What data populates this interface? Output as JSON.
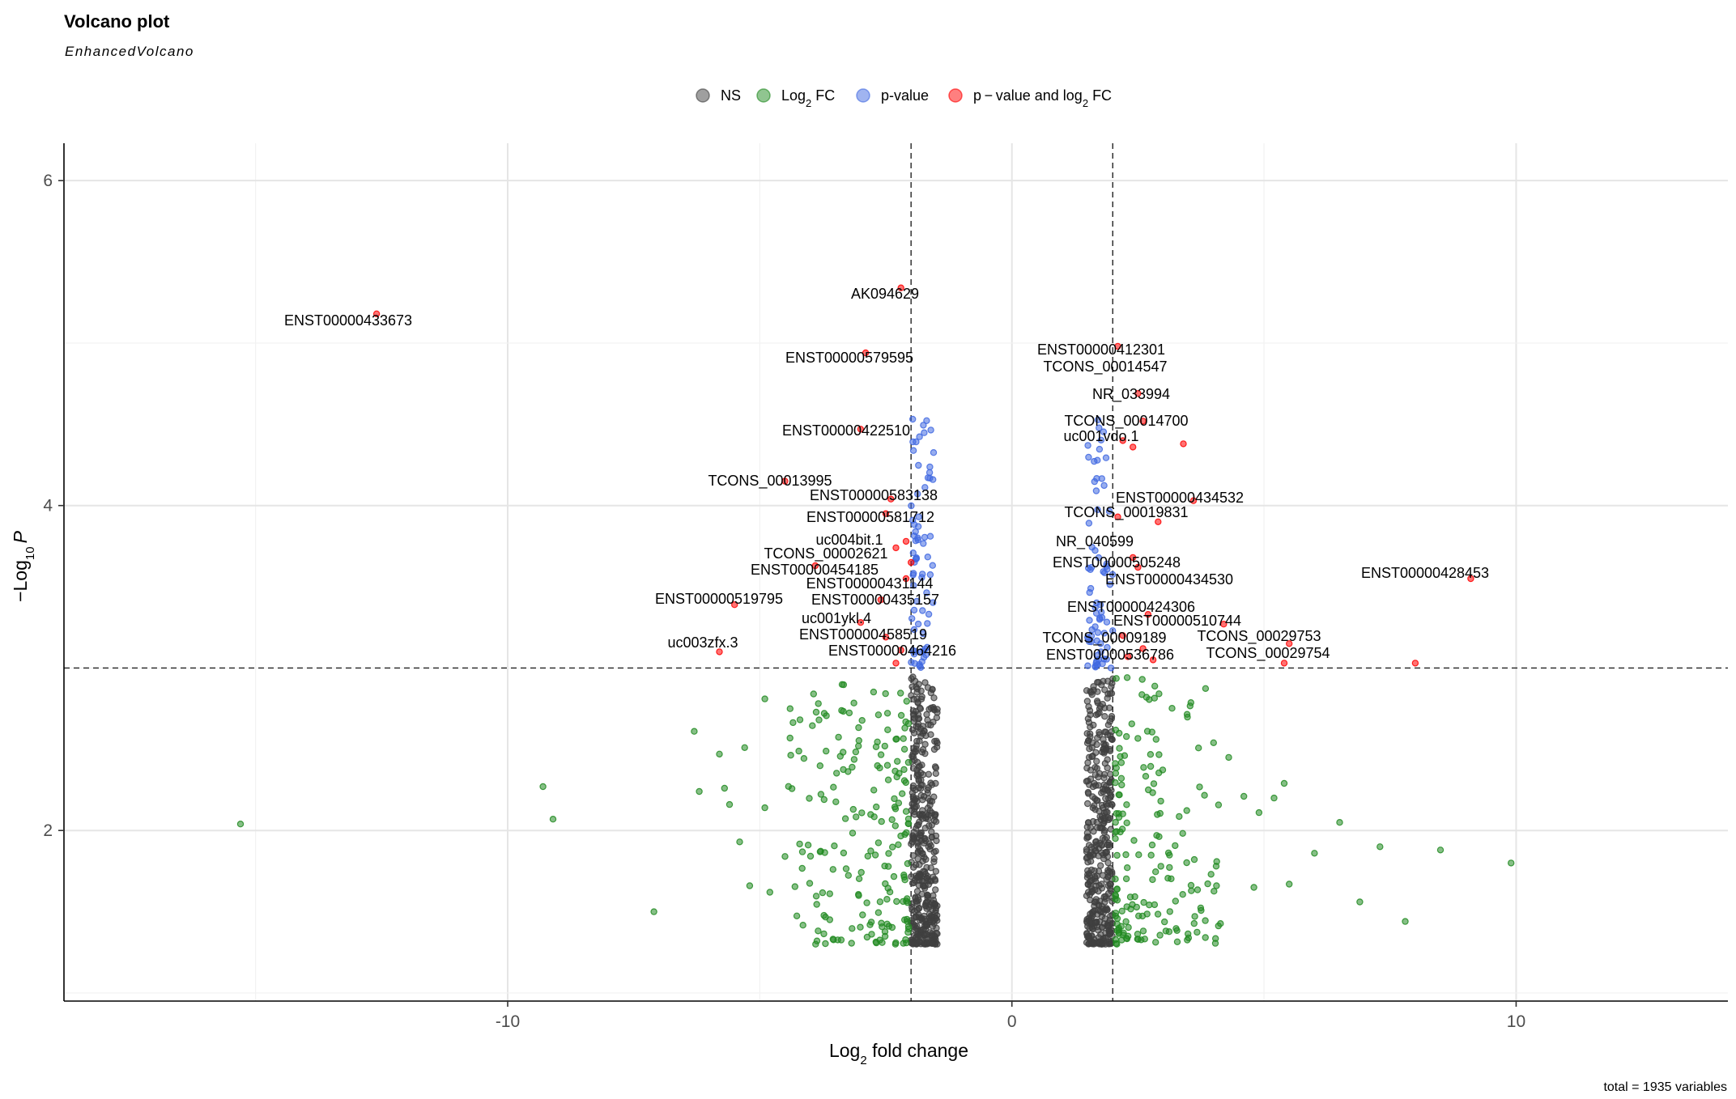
{
  "chart_data": {
    "type": "scatter",
    "title": "Volcano plot",
    "subtitle": "EnhancedVolcano",
    "xlabel_main": "Log",
    "xlabel_sub": "2",
    "xlabel_tail": " fold change",
    "ylabel_prefix": "−Log",
    "ylabel_sub": "10",
    "ylabel_var": "P",
    "caption": "total = 1935 variables",
    "xlim": [
      -18.8,
      14.2
    ],
    "ylim": [
      0.95,
      6.23
    ],
    "xticks": [
      -10,
      0,
      10
    ],
    "xtick_labels": [
      "-10",
      "0",
      "10"
    ],
    "yticks": [
      2,
      4,
      6
    ],
    "ytick_labels": [
      "2",
      "4",
      "6"
    ],
    "grid": true,
    "fc_cutoff": 2,
    "p_cutoff": 3,
    "legend": {
      "position": "top",
      "items": [
        {
          "key": "ns",
          "label": "NS",
          "color": "#404040"
        },
        {
          "key": "fc",
          "label_main": "Log",
          "label_sub": "2",
          "label_tail": " FC",
          "color": "#228b22"
        },
        {
          "key": "p",
          "label": "p-value",
          "color": "#4169e1"
        },
        {
          "key": "both",
          "label_main": "p − value and log",
          "label_sub": "2",
          "label_tail": " FC",
          "color": "#ff0000"
        }
      ]
    },
    "significant_points": [
      {
        "label": "ENST00000433673",
        "x": -12.6,
        "y": 5.18
      },
      {
        "label": "AK094629",
        "x": -2.2,
        "y": 5.34
      },
      {
        "label": "ENST00000579595",
        "x": -2.9,
        "y": 4.94
      },
      {
        "label": "ENST00000422510",
        "x": -3.0,
        "y": 4.47
      },
      {
        "label": "TCONS_00013995",
        "x": -4.5,
        "y": 4.15
      },
      {
        "label": "ENST00000583138",
        "x": -2.4,
        "y": 4.04
      },
      {
        "label": "ENST00000581712",
        "x": -2.3,
        "y": 3.74
      },
      {
        "label": "uc004bit.1",
        "x": -2.0,
        "y": 3.65
      },
      {
        "label": "TCONS_00002621",
        "x": -3.9,
        "y": 3.63
      },
      {
        "label": "ENST00000454185",
        "x": -2.1,
        "y": 3.55
      },
      {
        "label": "ENST00000431144",
        "x": -2.6,
        "y": 3.42
      },
      {
        "label": "ENST00000519795",
        "x": -5.5,
        "y": 3.39
      },
      {
        "label": "ENST00000435157",
        "x": -3.0,
        "y": 3.28
      },
      {
        "label": "uc001ykl.4",
        "x": -2.5,
        "y": 3.19
      },
      {
        "label": "ENST00000458519",
        "x": -2.2,
        "y": 3.11
      },
      {
        "label": "uc003zfx.3",
        "x": -5.8,
        "y": 3.1
      },
      {
        "label": "ENST00000464216",
        "x": -2.3,
        "y": 3.03
      },
      {
        "label": "ENST00000412301",
        "x": 2.1,
        "y": 4.98
      },
      {
        "label": "TCONS_00014547",
        "x": 2.5,
        "y": 4.69
      },
      {
        "label": "NR_033994",
        "x": 2.6,
        "y": 4.52
      },
      {
        "label": "TCONS_00014700",
        "x": 2.2,
        "y": 4.4
      },
      {
        "label": "uc001vdo.1",
        "x": 2.4,
        "y": 4.36
      },
      {
        "label": "ENST00000434532",
        "x": 3.6,
        "y": 4.03
      },
      {
        "label": "TCONS_00019831",
        "x": 2.1,
        "y": 3.93
      },
      {
        "label": "NR_040599",
        "x": 2.4,
        "y": 3.68
      },
      {
        "label": "ENST00000428453",
        "x": 9.1,
        "y": 3.55
      },
      {
        "label": "ENST00000505248",
        "x": 2.5,
        "y": 3.62
      },
      {
        "label": "ENST00000434530",
        "x": 2.7,
        "y": 3.33
      },
      {
        "label": "ENST00000424306",
        "x": 4.2,
        "y": 3.27
      },
      {
        "label": "ENST00000510744",
        "x": 2.6,
        "y": 3.12
      },
      {
        "label": "TCONS_00029753",
        "x": 5.5,
        "y": 3.15
      },
      {
        "label": "TCONS_00009189",
        "x": 2.3,
        "y": 3.07
      },
      {
        "label": "TCONS_00029754",
        "x": 5.4,
        "y": 3.03
      },
      {
        "label": "ENST00000536786",
        "x": 2.8,
        "y": 3.05
      }
    ],
    "extra_significant_points": [
      {
        "x": 3.4,
        "y": 4.38
      },
      {
        "x": 2.9,
        "y": 3.9
      },
      {
        "x": -2.1,
        "y": 3.78
      },
      {
        "x": 2.2,
        "y": 3.2
      },
      {
        "x": 8.0,
        "y": 3.03
      },
      {
        "x": -2.5,
        "y": 3.95
      }
    ],
    "fc_outliers": [
      {
        "x": -15.3,
        "y": 2.04
      },
      {
        "x": -9.3,
        "y": 2.27
      },
      {
        "x": -9.1,
        "y": 2.07
      },
      {
        "x": -7.1,
        "y": 1.5
      },
      {
        "x": -6.3,
        "y": 2.61
      },
      {
        "x": -6.2,
        "y": 2.24
      },
      {
        "x": -5.7,
        "y": 2.26
      },
      {
        "x": -5.8,
        "y": 2.47
      },
      {
        "x": -5.6,
        "y": 2.16
      },
      {
        "x": -5.3,
        "y": 2.51
      },
      {
        "x": -5.4,
        "y": 1.93
      },
      {
        "x": -5.2,
        "y": 1.66
      },
      {
        "x": -4.9,
        "y": 2.81
      },
      {
        "x": -4.8,
        "y": 1.62
      },
      {
        "x": -4.9,
        "y": 2.14
      },
      {
        "x": -4.5,
        "y": 1.84
      },
      {
        "x": 4.0,
        "y": 2.54
      },
      {
        "x": 4.3,
        "y": 2.45
      },
      {
        "x": 4.6,
        "y": 2.21
      },
      {
        "x": 4.9,
        "y": 2.11
      },
      {
        "x": 5.4,
        "y": 2.29
      },
      {
        "x": 5.2,
        "y": 2.2
      },
      {
        "x": 5.5,
        "y": 1.67
      },
      {
        "x": 6.0,
        "y": 1.86
      },
      {
        "x": 4.8,
        "y": 1.65
      },
      {
        "x": 6.9,
        "y": 1.56
      },
      {
        "x": 7.8,
        "y": 1.44
      },
      {
        "x": 8.5,
        "y": 1.88
      },
      {
        "x": 9.9,
        "y": 1.8
      },
      {
        "x": 7.3,
        "y": 1.9
      },
      {
        "x": 6.5,
        "y": 2.05
      }
    ],
    "point_counts": {
      "ns_left": 400,
      "ns_right": 380,
      "fc_left": 190,
      "fc_right": 170,
      "p_left": 70,
      "p_right": 70
    }
  }
}
